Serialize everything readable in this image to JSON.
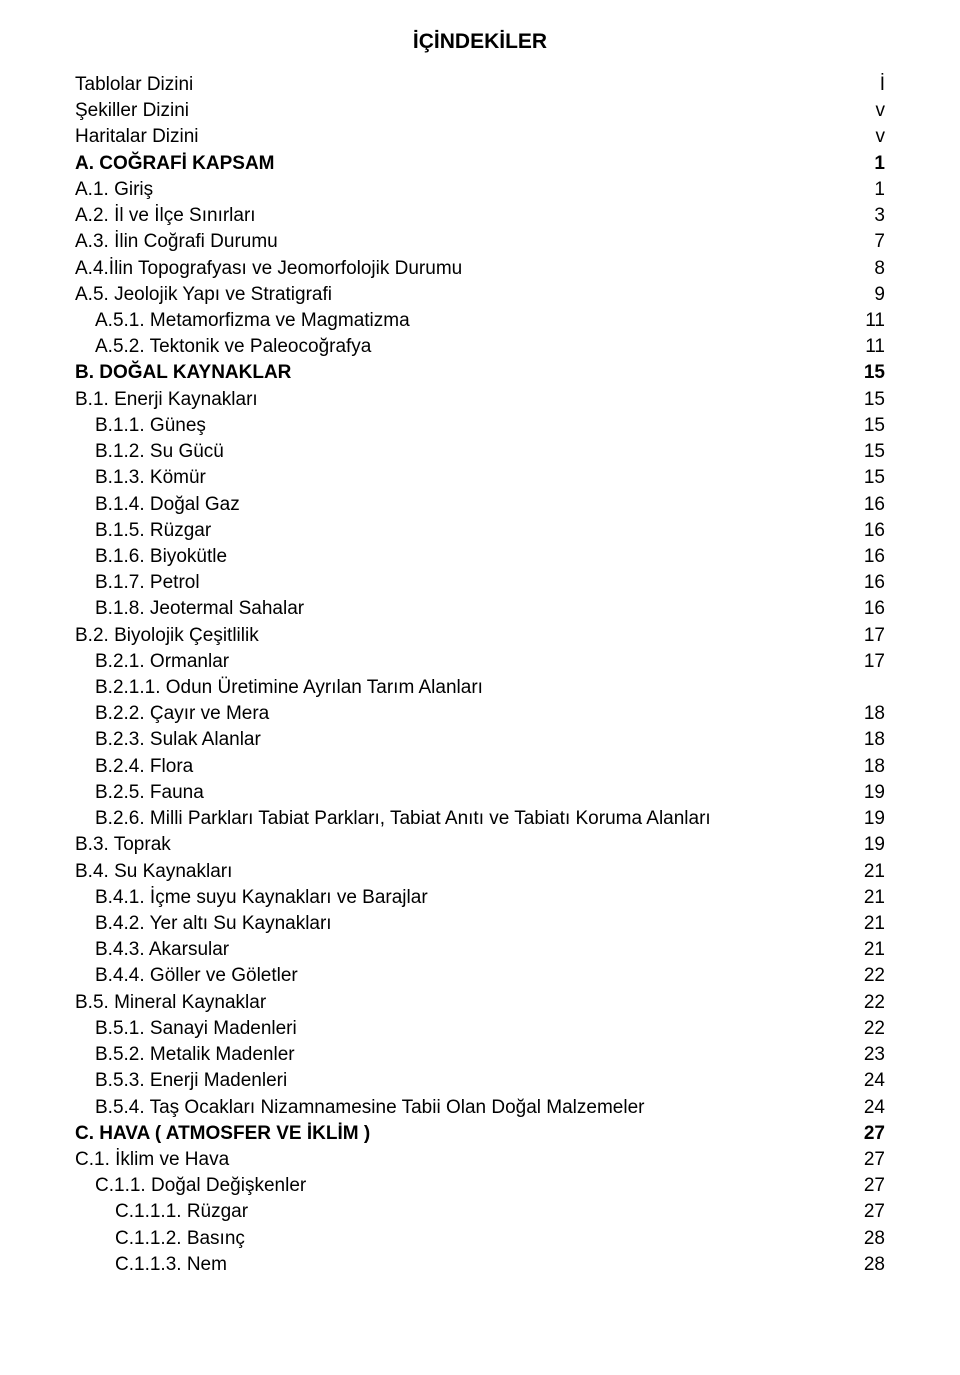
{
  "title": "İÇİNDEKİLER",
  "entries": [
    {
      "label": "Tablolar Dizini",
      "page": "İ",
      "indent": 0,
      "bold": false
    },
    {
      "label": "Şekiller Dizini",
      "page": "v",
      "indent": 0,
      "bold": false
    },
    {
      "label": "Haritalar Dizini",
      "page": "v",
      "indent": 0,
      "bold": false
    },
    {
      "label": "A. COĞRAFİ KAPSAM",
      "page": "1",
      "indent": 0,
      "bold": true
    },
    {
      "label": "A.1. Giriş",
      "page": "1",
      "indent": 0,
      "bold": false
    },
    {
      "label": "A.2. İl ve İlçe Sınırları",
      "page": "3",
      "indent": 0,
      "bold": false
    },
    {
      "label": "A.3. İlin Coğrafi Durumu",
      "page": "7",
      "indent": 0,
      "bold": false
    },
    {
      "label": "A.4.İlin Topografyası ve Jeomorfolojik Durumu",
      "page": "8",
      "indent": 0,
      "bold": false
    },
    {
      "label": "A.5. Jeolojik Yapı ve Stratigrafi",
      "page": "9",
      "indent": 0,
      "bold": false
    },
    {
      "label": "A.5.1. Metamorfizma ve Magmatizma",
      "page": "11",
      "indent": 1,
      "bold": false
    },
    {
      "label": "A.5.2. Tektonik ve Paleocoğrafya",
      "page": "11",
      "indent": 1,
      "bold": false
    },
    {
      "label": "B. DOĞAL KAYNAKLAR",
      "page": "15",
      "indent": 0,
      "bold": true
    },
    {
      "label": "B.1. Enerji Kaynakları",
      "page": "15",
      "indent": 0,
      "bold": false
    },
    {
      "label": "B.1.1. Güneş",
      "page": "15",
      "indent": 1,
      "bold": false
    },
    {
      "label": "B.1.2. Su Gücü",
      "page": "15",
      "indent": 1,
      "bold": false
    },
    {
      "label": "B.1.3. Kömür",
      "page": "15",
      "indent": 1,
      "bold": false
    },
    {
      "label": "B.1.4. Doğal Gaz",
      "page": "16",
      "indent": 1,
      "bold": false
    },
    {
      "label": "B.1.5. Rüzgar",
      "page": "16",
      "indent": 1,
      "bold": false
    },
    {
      "label": "B.1.6. Biyokütle",
      "page": "16",
      "indent": 1,
      "bold": false
    },
    {
      "label": "B.1.7. Petrol",
      "page": "16",
      "indent": 1,
      "bold": false
    },
    {
      "label": "B.1.8. Jeotermal Sahalar",
      "page": "16",
      "indent": 1,
      "bold": false
    },
    {
      "label": "B.2. Biyolojik Çeşitlilik",
      "page": "17",
      "indent": 0,
      "bold": false
    },
    {
      "label": "B.2.1. Ormanlar",
      "page": "17",
      "indent": 1,
      "bold": false
    },
    {
      "label": "B.2.1.1. Odun Üretimine Ayrılan Tarım Alanları",
      "page": "",
      "indent": 1,
      "bold": false
    },
    {
      "label": "B.2.2. Çayır ve Mera",
      "page": "18",
      "indent": 1,
      "bold": false
    },
    {
      "label": "B.2.3. Sulak Alanlar",
      "page": "18",
      "indent": 1,
      "bold": false
    },
    {
      "label": "B.2.4. Flora",
      "page": "18",
      "indent": 1,
      "bold": false
    },
    {
      "label": "B.2.5. Fauna",
      "page": "19",
      "indent": 1,
      "bold": false
    },
    {
      "label": "B.2.6. Milli Parkları Tabiat Parkları, Tabiat Anıtı ve Tabiatı Koruma Alanları",
      "page": "19",
      "indent": 1,
      "bold": false
    },
    {
      "label": "B.3. Toprak",
      "page": "19",
      "indent": 0,
      "bold": false
    },
    {
      "label": "B.4. Su Kaynakları",
      "page": "21",
      "indent": 0,
      "bold": false
    },
    {
      "label": "B.4.1. İçme suyu Kaynakları ve Barajlar",
      "page": "21",
      "indent": 1,
      "bold": false
    },
    {
      "label": "B.4.2. Yer altı Su Kaynakları",
      "page": "21",
      "indent": 1,
      "bold": false
    },
    {
      "label": "B.4.3. Akarsular",
      "page": "21",
      "indent": 1,
      "bold": false
    },
    {
      "label": "B.4.4. Göller ve Göletler",
      "page": "22",
      "indent": 1,
      "bold": false
    },
    {
      "label": "B.5. Mineral Kaynaklar",
      "page": "22",
      "indent": 0,
      "bold": false
    },
    {
      "label": "B.5.1. Sanayi Madenleri",
      "page": "22",
      "indent": 1,
      "bold": false
    },
    {
      "label": "B.5.2. Metalik Madenler",
      "page": "23",
      "indent": 1,
      "bold": false
    },
    {
      "label": "B.5.3. Enerji Madenleri",
      "page": "24",
      "indent": 1,
      "bold": false
    },
    {
      "label": "B.5.4. Taş Ocakları Nizamnamesine Tabii Olan Doğal Malzemeler",
      "page": "24",
      "indent": 1,
      "bold": false
    },
    {
      "label": "C. HAVA ( ATMOSFER VE İKLİM )",
      "page": "27",
      "indent": 0,
      "bold": true
    },
    {
      "label": "C.1. İklim ve Hava",
      "page": "27",
      "indent": 0,
      "bold": false
    },
    {
      "label": "C.1.1. Doğal Değişkenler",
      "page": "27",
      "indent": 1,
      "bold": false
    },
    {
      "label": "C.1.1.1. Rüzgar",
      "page": "27",
      "indent": 2,
      "bold": false
    },
    {
      "label": "C.1.1.2. Basınç",
      "page": "28",
      "indent": 2,
      "bold": false
    },
    {
      "label": "C.1.1.3. Nem",
      "page": "28",
      "indent": 2,
      "bold": false
    }
  ]
}
